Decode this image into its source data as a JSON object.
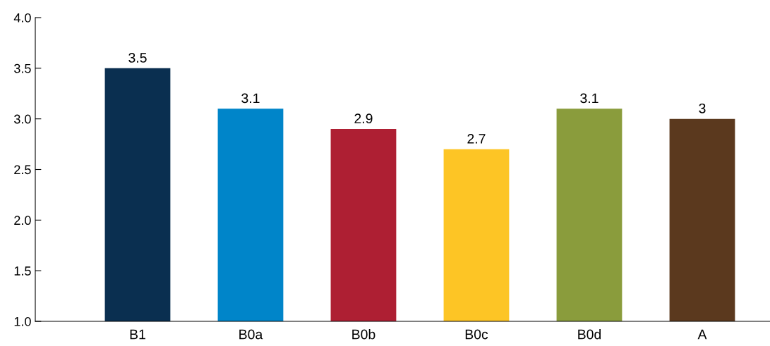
{
  "chart_data": {
    "type": "bar",
    "categories": [
      "B1",
      "B0a",
      "B0b",
      "B0c",
      "B0d",
      "A"
    ],
    "values": [
      3.5,
      3.1,
      2.9,
      2.7,
      3.1,
      3
    ],
    "colors": [
      "#0a2f50",
      "#0085c9",
      "#ae1f33",
      "#fdc525",
      "#8a9c3c",
      "#5b391e"
    ],
    "ylim": [
      1.0,
      4.0
    ],
    "yticks": [
      {
        "value": 1.0,
        "label": "1.0"
      },
      {
        "value": 1.5,
        "label": "1.5"
      },
      {
        "value": 2.0,
        "label": "2.0"
      },
      {
        "value": 2.5,
        "label": "2.5"
      },
      {
        "value": 3.0,
        "label": "3.0"
      },
      {
        "value": 3.5,
        "label": "3.5"
      },
      {
        "value": 4.0,
        "label": "4.0"
      }
    ],
    "data_labels": true,
    "grid": false,
    "legend": false
  }
}
